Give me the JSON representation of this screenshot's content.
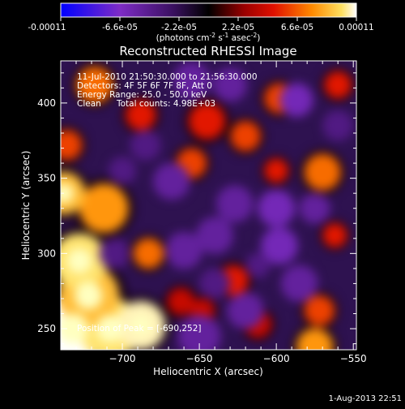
{
  "colorbar": {
    "tick_labels": [
      "-0.00011",
      "-6.6e-05",
      "-2.2e-05",
      "2.2e-05",
      "6.6e-05",
      "0.00011"
    ],
    "units_prefix": "(photons cm",
    "units_sup1": "-2",
    "units_mid1": " s",
    "units_sup2": "-1",
    "units_mid2": " asec",
    "units_sup3": "-2",
    "units_suffix": ")"
  },
  "info": {
    "time_range": "11-Jul-2010 21:50:30.000 to 21:56:30.000",
    "detectors": "Detectors: 4F 5F 6F 7F 8F, Att 0",
    "energy_range": "Energy Range: 25.0 - 50.0 keV",
    "algorithm": "Clean",
    "total_counts": "Total counts: 4.98E+03",
    "position_of_peak": "Position of Peak = [-690,252]"
  },
  "footer": {
    "date": "1-Aug-2013 22:51"
  },
  "chart_data": {
    "type": "heatmap",
    "title": "Reconstructed RHESSI Image",
    "xlabel": "Heliocentric X (arcsec)",
    "ylabel": "Heliocentric Y (arcsec)",
    "xlim": [
      -740,
      -548
    ],
    "ylim": [
      236,
      428
    ],
    "x_ticks": [
      -700,
      -650,
      -600,
      -550
    ],
    "y_ticks": [
      250,
      300,
      350,
      400
    ],
    "x_tick_labels": [
      "−700",
      "−650",
      "−600",
      "−550"
    ],
    "y_tick_labels": [
      "250",
      "300",
      "350",
      "400"
    ],
    "color_range": [
      -0.00011,
      0.00011
    ],
    "colormap_stops": [
      "#0000ff",
      "#7e2cc6",
      "#000000",
      "#c40000",
      "#ff7a00",
      "#ffffff"
    ],
    "blobs": [
      {
        "x": -732,
        "y": 250,
        "r": 22,
        "v": 0.00011
      },
      {
        "x": -708,
        "y": 250,
        "r": 20,
        "v": 0.0001
      },
      {
        "x": -688,
        "y": 252,
        "r": 16,
        "v": 0.000105
      },
      {
        "x": -722,
        "y": 272,
        "r": 20,
        "v": 9e-05
      },
      {
        "x": -728,
        "y": 295,
        "r": 18,
        "v": 0.0001
      },
      {
        "x": -712,
        "y": 330,
        "r": 16,
        "v": 8e-05
      },
      {
        "x": -738,
        "y": 340,
        "r": 14,
        "v": 9e-05
      },
      {
        "x": -736,
        "y": 372,
        "r": 10,
        "v": 6e-05
      },
      {
        "x": -718,
        "y": 412,
        "r": 12,
        "v": 7e-05
      },
      {
        "x": -688,
        "y": 392,
        "r": 10,
        "v": 5e-05
      },
      {
        "x": -683,
        "y": 300,
        "r": 10,
        "v": 7e-05
      },
      {
        "x": -645,
        "y": 388,
        "r": 12,
        "v": 5e-05
      },
      {
        "x": -655,
        "y": 360,
        "r": 10,
        "v": 6e-05
      },
      {
        "x": -620,
        "y": 378,
        "r": 10,
        "v": 6e-05
      },
      {
        "x": -628,
        "y": 282,
        "r": 10,
        "v": 5e-05
      },
      {
        "x": -598,
        "y": 403,
        "r": 10,
        "v": 6e-05
      },
      {
        "x": -570,
        "y": 354,
        "r": 12,
        "v": 7e-05
      },
      {
        "x": -600,
        "y": 355,
        "r": 8,
        "v": 5e-05
      },
      {
        "x": -562,
        "y": 312,
        "r": 8,
        "v": 5e-05
      },
      {
        "x": -572,
        "y": 262,
        "r": 10,
        "v": 6e-05
      },
      {
        "x": -575,
        "y": 238,
        "r": 12,
        "v": 8e-05
      },
      {
        "x": -560,
        "y": 412,
        "r": 9,
        "v": 5e-05
      },
      {
        "x": -662,
        "y": 268,
        "r": 9,
        "v": 4e-05
      },
      {
        "x": -648,
        "y": 262,
        "r": 8,
        "v": 4e-05
      },
      {
        "x": -612,
        "y": 253,
        "r": 9,
        "v": 4e-05
      },
      {
        "x": -600,
        "y": 330,
        "r": 12,
        "v": -6e-05
      },
      {
        "x": -627,
        "y": 333,
        "r": 12,
        "v": -5e-05
      },
      {
        "x": -660,
        "y": 302,
        "r": 12,
        "v": -5e-05
      },
      {
        "x": -640,
        "y": 312,
        "r": 12,
        "v": -5e-05
      },
      {
        "x": -598,
        "y": 305,
        "r": 12,
        "v": -6e-05
      },
      {
        "x": -587,
        "y": 402,
        "r": 11,
        "v": -6e-05
      },
      {
        "x": -630,
        "y": 412,
        "r": 11,
        "v": -5e-05
      },
      {
        "x": -655,
        "y": 415,
        "r": 12,
        "v": -5e-05
      },
      {
        "x": -585,
        "y": 280,
        "r": 12,
        "v": -5e-05
      },
      {
        "x": -668,
        "y": 348,
        "r": 12,
        "v": -5e-05
      },
      {
        "x": -685,
        "y": 372,
        "r": 10,
        "v": -4e-05
      },
      {
        "x": -705,
        "y": 300,
        "r": 10,
        "v": -4e-05
      },
      {
        "x": -650,
        "y": 245,
        "r": 14,
        "v": -5e-05
      },
      {
        "x": -620,
        "y": 262,
        "r": 12,
        "v": -5e-05
      },
      {
        "x": -560,
        "y": 385,
        "r": 10,
        "v": -4e-05
      },
      {
        "x": -575,
        "y": 330,
        "r": 10,
        "v": -5e-05
      },
      {
        "x": -640,
        "y": 280,
        "r": 10,
        "v": -4e-05
      },
      {
        "x": -700,
        "y": 355,
        "r": 9,
        "v": -4e-05
      },
      {
        "x": -612,
        "y": 292,
        "r": 8,
        "v": -4e-05
      }
    ]
  }
}
